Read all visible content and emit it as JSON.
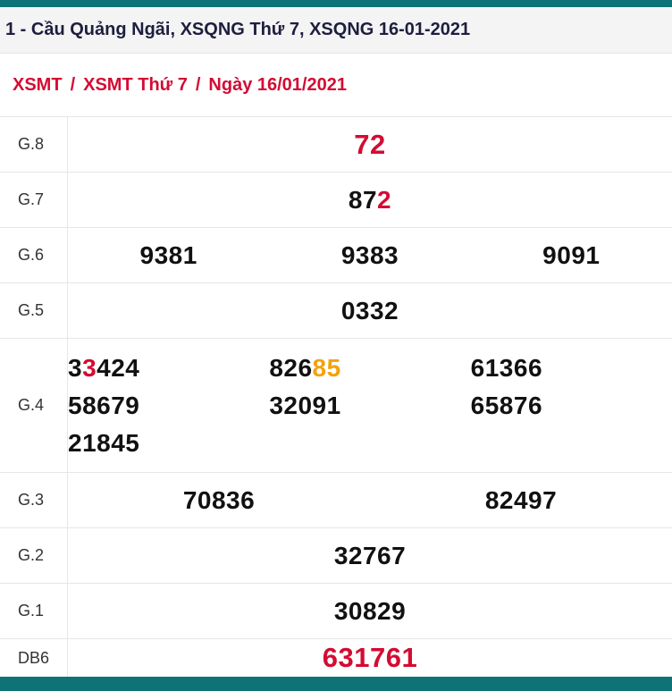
{
  "theme": {
    "teal": "#0d7377",
    "red": "#d40b33",
    "orange": "#f2a20d",
    "border": "#e6e6e6",
    "dark": "#1e1e3f",
    "num": "#111111",
    "headerBg": "#f4f4f4"
  },
  "header": {
    "title": "1 - Cầu Quảng Ngãi, XSQNG Thứ 7, XSQNG 16-01-2021"
  },
  "breadcrumb": {
    "separator": "/",
    "items": [
      {
        "label": "XSMT"
      },
      {
        "label": "XSMT Thứ 7"
      },
      {
        "label": "Ngày 16/01/2021"
      }
    ]
  },
  "results": {
    "rows": [
      {
        "label": "G.8",
        "cells": [
          {
            "parts": [
              {
                "text": "72",
                "color": "red"
              }
            ]
          }
        ]
      },
      {
        "label": "G.7",
        "cells": [
          {
            "parts": [
              {
                "text": "87",
                "color": "black"
              },
              {
                "text": "2",
                "color": "red"
              }
            ]
          }
        ]
      },
      {
        "label": "G.6",
        "cells": [
          {
            "parts": [
              {
                "text": "9381",
                "color": "black"
              }
            ]
          },
          {
            "parts": [
              {
                "text": "9383",
                "color": "black"
              }
            ]
          },
          {
            "parts": [
              {
                "text": "9091",
                "color": "black"
              }
            ]
          }
        ]
      },
      {
        "label": "G.5",
        "cells": [
          {
            "parts": [
              {
                "text": "0332",
                "color": "black"
              }
            ]
          }
        ]
      },
      {
        "label": "G.4",
        "lines": [
          [
            {
              "parts": [
                {
                  "text": "3",
                  "color": "black"
                },
                {
                  "text": "3",
                  "color": "red"
                },
                {
                  "text": "424",
                  "color": "black"
                }
              ]
            },
            {
              "parts": [
                {
                  "text": "826",
                  "color": "black"
                },
                {
                  "text": "85",
                  "color": "orange"
                }
              ]
            },
            {
              "parts": [
                {
                  "text": "61366",
                  "color": "black"
                }
              ]
            }
          ],
          [
            {
              "parts": [
                {
                  "text": "58679",
                  "color": "black"
                }
              ]
            },
            {
              "parts": [
                {
                  "text": "32091",
                  "color": "black"
                }
              ]
            },
            {
              "parts": [
                {
                  "text": "65876",
                  "color": "black"
                }
              ]
            }
          ],
          [
            {
              "parts": [
                {
                  "text": "21845",
                  "color": "black"
                }
              ]
            }
          ]
        ]
      },
      {
        "label": "G.3",
        "cells": [
          {
            "parts": [
              {
                "text": "70836",
                "color": "black"
              }
            ]
          },
          {
            "parts": [
              {
                "text": "82497",
                "color": "black"
              }
            ]
          }
        ]
      },
      {
        "label": "G.2",
        "cells": [
          {
            "parts": [
              {
                "text": "32767",
                "color": "black"
              }
            ]
          }
        ]
      },
      {
        "label": "G.1",
        "cells": [
          {
            "parts": [
              {
                "text": "30829",
                "color": "black"
              }
            ]
          }
        ]
      },
      {
        "label": "DB6",
        "cells": [
          {
            "parts": [
              {
                "text": "631761",
                "color": "red"
              }
            ]
          }
        ]
      }
    ]
  }
}
